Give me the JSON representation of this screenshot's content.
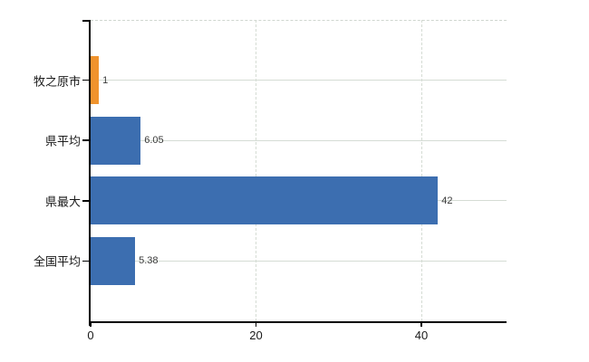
{
  "chart_data": {
    "type": "bar",
    "orientation": "horizontal",
    "categories": [
      "牧之原市",
      "県平均",
      "県最大",
      "全国平均"
    ],
    "values": [
      1,
      6.05,
      42,
      5.38
    ],
    "value_labels": [
      "1",
      "6.05",
      "42",
      "5.38"
    ],
    "bar_colors": [
      "#f0932d",
      "#3c6eb0",
      "#3c6eb0",
      "#3c6eb0"
    ],
    "xticks": [
      0,
      20,
      40
    ],
    "xtick_labels": [
      "0",
      "20",
      "40"
    ],
    "xlim": [
      0,
      50.3
    ],
    "grid": {
      "horizontal_lines": "solid, at category centers",
      "vertical_lines": "dashed, at x ticks",
      "top_border": "dashed",
      "color": "#d5dcd4"
    },
    "colors": {
      "accent_orange": "#f0932d",
      "accent_blue": "#3c6eb0",
      "axis": "#000000",
      "tick_label": "#1a1a1a",
      "value_label": "#3a3a3a",
      "background": "#ffffff"
    },
    "legend": "none",
    "title": ""
  }
}
